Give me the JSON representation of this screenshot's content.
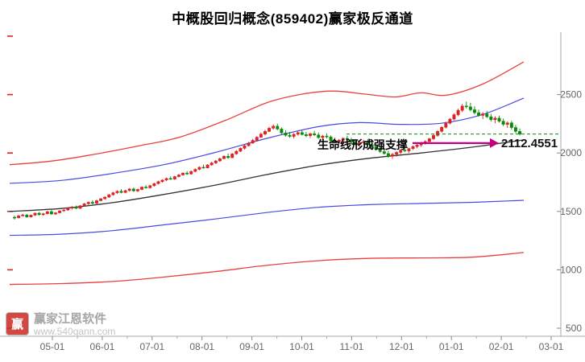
{
  "watermark": {
    "logo_text": "赢",
    "name": "赢家江恩软件",
    "url": "www.540gann.com"
  },
  "chart_data": {
    "type": "candlestick",
    "title": "中概股回归概念(859402)赢家极反通道",
    "x_labels": [
      "05-01",
      "06-01",
      "07-01",
      "08-01",
      "09-01",
      "10-01",
      "11-01",
      "12-01",
      "01-01",
      "02-01",
      "03-01"
    ],
    "y_ticks": [
      2500,
      2000,
      1500,
      1000,
      500
    ],
    "ylim": [
      500,
      3000
    ],
    "grid": "off",
    "up_color": "#dd2222",
    "down_color": "#0a8a0a",
    "axis_color": "#aaaaaa",
    "label_color": "#666666",
    "left_tick_color": "#dd2222",
    "annotations": [
      {
        "text": "生命线形成强支撑",
        "label": "2112.4551",
        "points_to_value": 2112.4551,
        "arrow_color": "#c4007e"
      }
    ],
    "support_line": {
      "value": 2162,
      "color": "#0a8a0a",
      "style": "dashed"
    },
    "lines": [
      {
        "name": "outer-upper-rail",
        "color": "#e84040",
        "width": 1.3,
        "points": [
          [
            0,
            1900
          ],
          [
            0.08,
            1930
          ],
          [
            0.16,
            1985
          ],
          [
            0.25,
            2060
          ],
          [
            0.33,
            2135
          ],
          [
            0.42,
            2280
          ],
          [
            0.5,
            2430
          ],
          [
            0.57,
            2505
          ],
          [
            0.63,
            2530
          ],
          [
            0.69,
            2505
          ],
          [
            0.75,
            2480
          ],
          [
            0.8,
            2515
          ],
          [
            0.85,
            2495
          ],
          [
            0.92,
            2590
          ],
          [
            1,
            2780
          ]
        ]
      },
      {
        "name": "inner-upper-rail",
        "color": "#4a4ae0",
        "width": 1.2,
        "points": [
          [
            0,
            1740
          ],
          [
            0.1,
            1765
          ],
          [
            0.2,
            1825
          ],
          [
            0.3,
            1900
          ],
          [
            0.4,
            2005
          ],
          [
            0.5,
            2125
          ],
          [
            0.6,
            2225
          ],
          [
            0.68,
            2260
          ],
          [
            0.76,
            2245
          ],
          [
            0.84,
            2255
          ],
          [
            0.92,
            2330
          ],
          [
            1,
            2470
          ]
        ]
      },
      {
        "name": "life-line",
        "color": "#333333",
        "width": 1.3,
        "points": [
          [
            0,
            1500
          ],
          [
            0.1,
            1525
          ],
          [
            0.2,
            1575
          ],
          [
            0.3,
            1645
          ],
          [
            0.4,
            1725
          ],
          [
            0.5,
            1815
          ],
          [
            0.6,
            1895
          ],
          [
            0.7,
            1955
          ],
          [
            0.8,
            2000
          ],
          [
            0.9,
            2050
          ],
          [
            1,
            2112
          ]
        ]
      },
      {
        "name": "inner-lower-rail",
        "color": "#4a4ae0",
        "width": 1.2,
        "points": [
          [
            0,
            1295
          ],
          [
            0.1,
            1305
          ],
          [
            0.2,
            1335
          ],
          [
            0.3,
            1385
          ],
          [
            0.4,
            1435
          ],
          [
            0.5,
            1490
          ],
          [
            0.6,
            1535
          ],
          [
            0.7,
            1558
          ],
          [
            0.8,
            1568
          ],
          [
            0.9,
            1578
          ],
          [
            1,
            1595
          ]
        ]
      },
      {
        "name": "outer-lower-rail",
        "color": "#e84040",
        "width": 1.3,
        "points": [
          [
            0,
            875
          ],
          [
            0.1,
            882
          ],
          [
            0.2,
            900
          ],
          [
            0.3,
            938
          ],
          [
            0.4,
            985
          ],
          [
            0.5,
            1038
          ],
          [
            0.6,
            1078
          ],
          [
            0.7,
            1098
          ],
          [
            0.8,
            1102
          ],
          [
            0.9,
            1108
          ],
          [
            1,
            1148
          ]
        ]
      }
    ],
    "candles": [
      [
        1450,
        1465,
        1430,
        1445
      ],
      [
        1445,
        1470,
        1440,
        1462
      ],
      [
        1462,
        1480,
        1455,
        1470
      ],
      [
        1470,
        1478,
        1445,
        1452
      ],
      [
        1452,
        1472,
        1448,
        1468
      ],
      [
        1468,
        1490,
        1460,
        1485
      ],
      [
        1485,
        1495,
        1465,
        1472
      ],
      [
        1472,
        1488,
        1462,
        1480
      ],
      [
        1480,
        1505,
        1475,
        1498
      ],
      [
        1498,
        1512,
        1470,
        1478
      ],
      [
        1478,
        1495,
        1468,
        1488
      ],
      [
        1488,
        1510,
        1482,
        1505
      ],
      [
        1505,
        1520,
        1495,
        1512
      ],
      [
        1512,
        1535,
        1505,
        1528
      ],
      [
        1528,
        1545,
        1515,
        1538
      ],
      [
        1538,
        1550,
        1520,
        1526
      ],
      [
        1526,
        1555,
        1520,
        1548
      ],
      [
        1548,
        1572,
        1540,
        1565
      ],
      [
        1565,
        1585,
        1555,
        1578
      ],
      [
        1578,
        1595,
        1560,
        1570
      ],
      [
        1570,
        1600,
        1565,
        1592
      ],
      [
        1592,
        1615,
        1585,
        1608
      ],
      [
        1608,
        1630,
        1600,
        1622
      ],
      [
        1622,
        1650,
        1615,
        1642
      ],
      [
        1642,
        1668,
        1635,
        1660
      ],
      [
        1660,
        1680,
        1650,
        1672
      ],
      [
        1672,
        1690,
        1655,
        1662
      ],
      [
        1662,
        1685,
        1655,
        1678
      ],
      [
        1678,
        1700,
        1670,
        1692
      ],
      [
        1692,
        1705,
        1668,
        1675
      ],
      [
        1675,
        1695,
        1665,
        1688
      ],
      [
        1688,
        1715,
        1680,
        1708
      ],
      [
        1708,
        1725,
        1695,
        1702
      ],
      [
        1702,
        1728,
        1695,
        1720
      ],
      [
        1720,
        1745,
        1712,
        1738
      ],
      [
        1738,
        1762,
        1730,
        1755
      ],
      [
        1755,
        1775,
        1745,
        1768
      ],
      [
        1768,
        1790,
        1760,
        1782
      ],
      [
        1782,
        1800,
        1770,
        1776
      ],
      [
        1776,
        1805,
        1770,
        1798
      ],
      [
        1798,
        1820,
        1790,
        1812
      ],
      [
        1812,
        1835,
        1805,
        1828
      ],
      [
        1828,
        1845,
        1812,
        1820
      ],
      [
        1820,
        1850,
        1815,
        1842
      ],
      [
        1842,
        1868,
        1835,
        1860
      ],
      [
        1860,
        1885,
        1852,
        1878
      ],
      [
        1878,
        1900,
        1865,
        1872
      ],
      [
        1872,
        1905,
        1868,
        1898
      ],
      [
        1898,
        1925,
        1890,
        1915
      ],
      [
        1915,
        1940,
        1905,
        1932
      ],
      [
        1932,
        1960,
        1925,
        1952
      ],
      [
        1952,
        1980,
        1945,
        1972
      ],
      [
        1972,
        1995,
        1950,
        1960
      ],
      [
        1960,
        2000,
        1955,
        1992
      ],
      [
        1992,
        2025,
        1985,
        2015
      ],
      [
        2015,
        2048,
        2008,
        2040
      ],
      [
        2040,
        2070,
        2030,
        2062
      ],
      [
        2062,
        2095,
        2055,
        2085
      ],
      [
        2085,
        2120,
        2078,
        2108
      ],
      [
        2108,
        2145,
        2100,
        2135
      ],
      [
        2135,
        2175,
        2128,
        2162
      ],
      [
        2162,
        2200,
        2150,
        2185
      ],
      [
        2185,
        2225,
        2178,
        2212
      ],
      [
        2212,
        2245,
        2200,
        2230
      ],
      [
        2230,
        2250,
        2195,
        2205
      ],
      [
        2205,
        2220,
        2160,
        2172
      ],
      [
        2172,
        2195,
        2140,
        2152
      ],
      [
        2152,
        2180,
        2130,
        2142
      ],
      [
        2142,
        2170,
        2125,
        2160
      ],
      [
        2160,
        2185,
        2148,
        2175
      ],
      [
        2175,
        2195,
        2150,
        2158
      ],
      [
        2158,
        2180,
        2135,
        2148
      ],
      [
        2148,
        2172,
        2128,
        2165
      ],
      [
        2165,
        2190,
        2145,
        2155
      ],
      [
        2155,
        2175,
        2120,
        2132
      ],
      [
        2132,
        2155,
        2110,
        2145
      ],
      [
        2145,
        2168,
        2125,
        2138
      ],
      [
        2138,
        2150,
        2095,
        2105
      ],
      [
        2105,
        2130,
        2085,
        2095
      ],
      [
        2095,
        2120,
        2075,
        2110
      ],
      [
        2110,
        2135,
        2090,
        2125
      ],
      [
        2125,
        2148,
        2105,
        2115
      ],
      [
        2115,
        2130,
        2080,
        2092
      ],
      [
        2092,
        2115,
        2065,
        2075
      ],
      [
        2075,
        2100,
        2050,
        2088
      ],
      [
        2088,
        2112,
        2070,
        2098
      ],
      [
        2098,
        2120,
        2060,
        2072
      ],
      [
        2072,
        2095,
        2040,
        2055
      ],
      [
        2055,
        2075,
        2020,
        2032
      ],
      [
        2032,
        2055,
        2000,
        2012
      ],
      [
        2012,
        2040,
        1985,
        1995
      ],
      [
        1995,
        2020,
        1960,
        1972
      ],
      [
        1972,
        2000,
        1950,
        1988
      ],
      [
        1988,
        2015,
        1970,
        2005
      ],
      [
        2005,
        2035,
        1990,
        2025
      ],
      [
        2025,
        2050,
        2008,
        2018
      ],
      [
        2018,
        2045,
        2000,
        2038
      ],
      [
        2038,
        2065,
        2025,
        2055
      ],
      [
        2055,
        2080,
        2040,
        2068
      ],
      [
        2068,
        2095,
        2052,
        2085
      ],
      [
        2085,
        2110,
        2070,
        2098
      ],
      [
        2098,
        2130,
        2088,
        2122
      ],
      [
        2122,
        2160,
        2110,
        2150
      ],
      [
        2150,
        2195,
        2140,
        2185
      ],
      [
        2185,
        2230,
        2175,
        2220
      ],
      [
        2220,
        2268,
        2210,
        2255
      ],
      [
        2255,
        2300,
        2245,
        2290
      ],
      [
        2290,
        2340,
        2280,
        2328
      ],
      [
        2328,
        2380,
        2315,
        2365
      ],
      [
        2365,
        2420,
        2350,
        2402
      ],
      [
        2402,
        2440,
        2380,
        2395
      ],
      [
        2395,
        2430,
        2355,
        2370
      ],
      [
        2370,
        2400,
        2330,
        2345
      ],
      [
        2345,
        2372,
        2310,
        2322
      ],
      [
        2322,
        2350,
        2290,
        2335
      ],
      [
        2335,
        2360,
        2300,
        2310
      ],
      [
        2310,
        2335,
        2270,
        2285
      ],
      [
        2285,
        2315,
        2255,
        2298
      ],
      [
        2298,
        2320,
        2260,
        2272
      ],
      [
        2272,
        2295,
        2230,
        2245
      ],
      [
        2245,
        2270,
        2215,
        2258
      ],
      [
        2258,
        2275,
        2200,
        2218
      ],
      [
        2218,
        2240,
        2170,
        2185
      ],
      [
        2185,
        2210,
        2150,
        2162
      ]
    ]
  }
}
